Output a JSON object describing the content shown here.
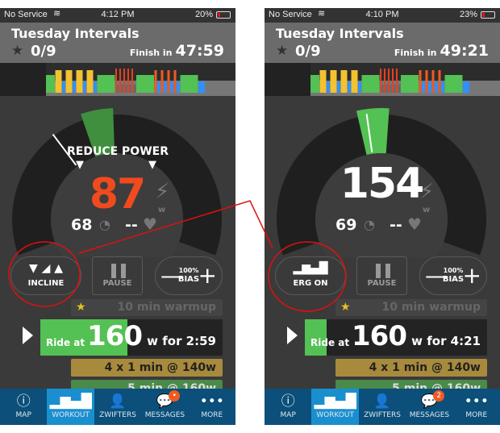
{
  "phones": [
    {
      "status": {
        "carrier": "No Service",
        "time": "4:12 PM",
        "battery": "20%",
        "battery_level": 0.2
      },
      "header": {
        "title": "Tuesday Intervals",
        "progress": "0/9",
        "finish_label": "Finish in",
        "finish_time": "47:59"
      },
      "gauge": {
        "alert": "REDUCE POWER",
        "power": "87",
        "power_color": "#f04a1e",
        "cadence": "68",
        "heart_rate": "--",
        "unit": "w"
      },
      "buttons": {
        "mode_label": "INCLINE",
        "pause_label": "PAUSE",
        "bias_pct": "100%",
        "bias_label": "BIAS"
      },
      "workout": {
        "warmup": "10 min warmup",
        "current_prefix": "Ride at",
        "current_watts": "160",
        "current_suffix": "w for 2:59",
        "current_progress": 0.48,
        "next": "4 x 1 min @ 140w",
        "after": "5 min @ 160w"
      },
      "tabs": [
        {
          "label": "MAP"
        },
        {
          "label": "WORKOUT",
          "selected": true
        },
        {
          "label": "ZWIFTERS"
        },
        {
          "label": "MESSAGES",
          "badge": "•"
        },
        {
          "label": "MORE"
        }
      ]
    },
    {
      "status": {
        "carrier": "No Service",
        "time": "4:10 PM",
        "battery": "23%",
        "battery_level": 0.23
      },
      "header": {
        "title": "Tuesday Intervals",
        "progress": "0/9",
        "finish_label": "Finish in",
        "finish_time": "49:21"
      },
      "gauge": {
        "alert": "",
        "power": "154",
        "power_color": "#ffffff",
        "cadence": "69",
        "heart_rate": "--",
        "unit": "w"
      },
      "buttons": {
        "mode_label": "ERG ON",
        "pause_label": "PAUSE",
        "bias_pct": "100%",
        "bias_label": "BIAS"
      },
      "workout": {
        "warmup": "10 min warmup",
        "current_prefix": "Ride at",
        "current_watts": "160",
        "current_suffix": "w for 4:21",
        "current_progress": 0.12,
        "next": "4 x 1 min @ 140w",
        "after": "5 min @ 160w"
      },
      "tabs": [
        {
          "label": "MAP"
        },
        {
          "label": "WORKOUT",
          "selected": true
        },
        {
          "label": "ZWIFTERS"
        },
        {
          "label": "MESSAGES",
          "badge": "2"
        },
        {
          "label": "MORE"
        }
      ]
    }
  ],
  "colors": {
    "accent": "#1a8fd0",
    "tabbar": "#0b4f7a",
    "callout": "#e01010"
  }
}
